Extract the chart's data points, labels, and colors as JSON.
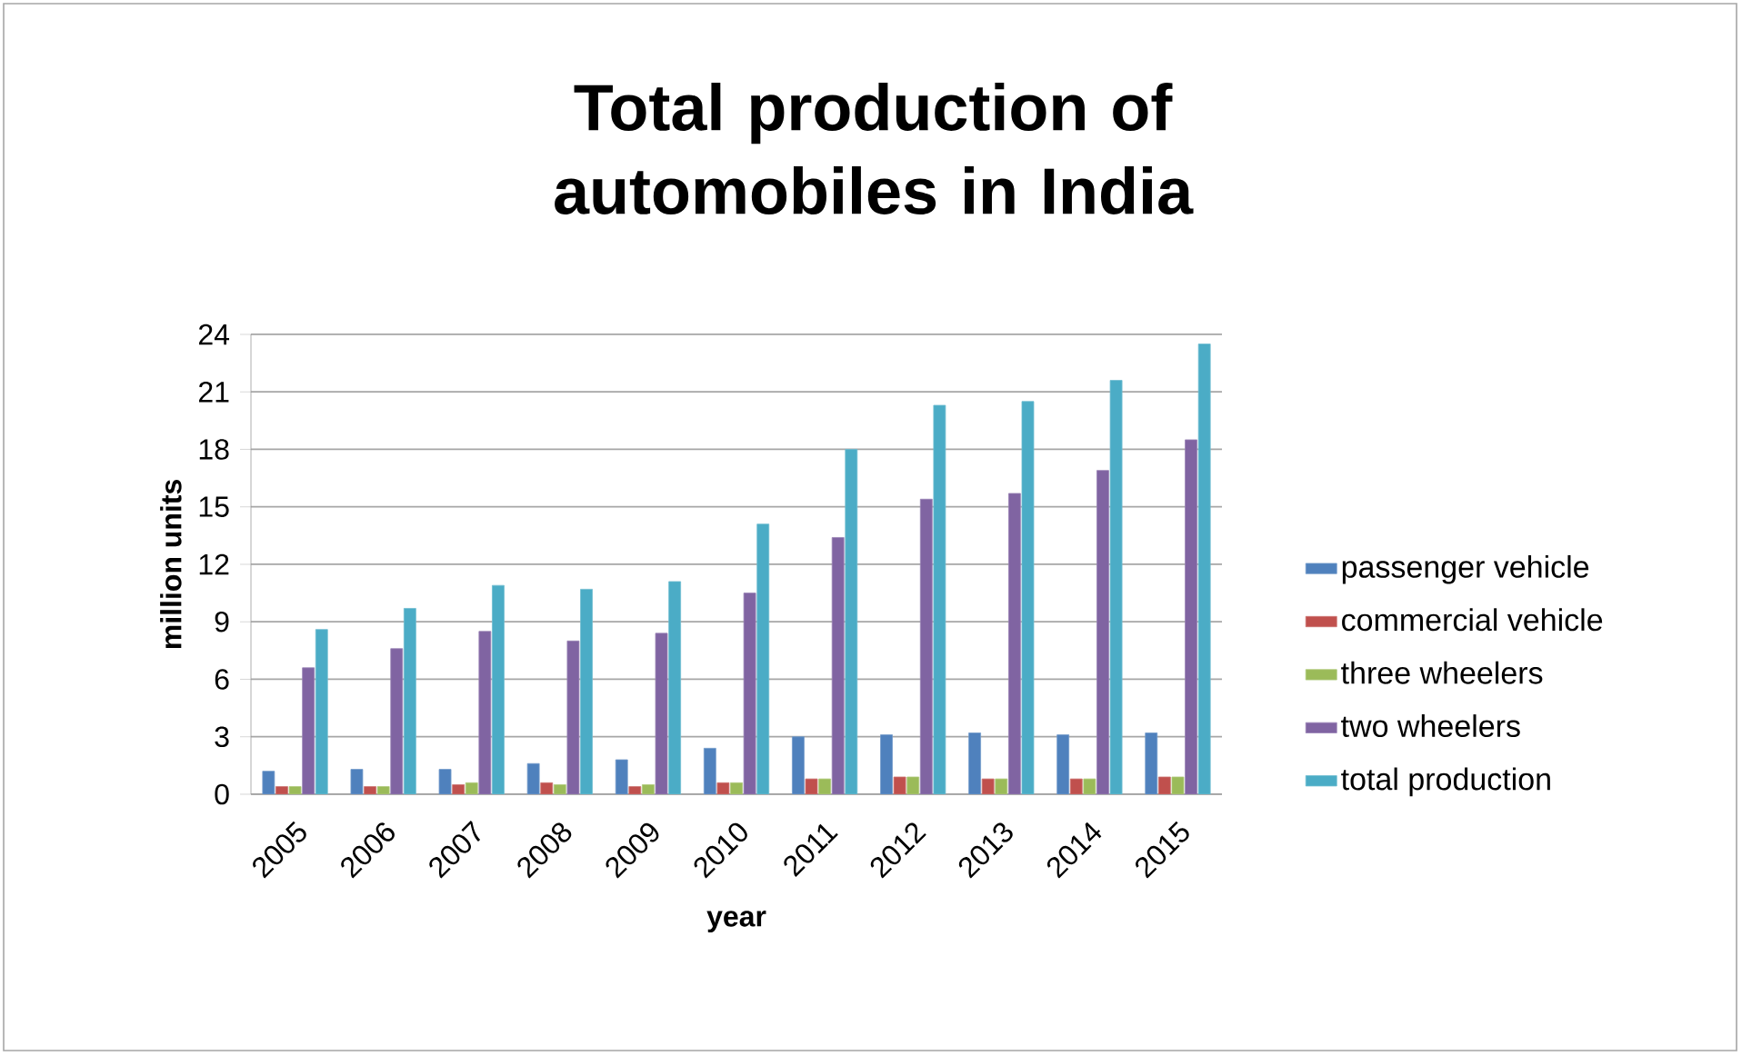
{
  "chart_data": {
    "type": "bar",
    "title": "Total production of automobiles in India",
    "xlabel": "year",
    "ylabel": "million units",
    "categories": [
      "2005",
      "2006",
      "2007",
      "2008",
      "2009",
      "2010",
      "2011",
      "2012",
      "2013",
      "2014",
      "2015"
    ],
    "series": [
      {
        "name": "passenger vehicle",
        "color": "#4f81bd",
        "values": [
          1.2,
          1.3,
          1.3,
          1.6,
          1.8,
          2.4,
          3.0,
          3.1,
          3.2,
          3.1,
          3.2
        ]
      },
      {
        "name": "commercial vehicle",
        "color": "#c0504d",
        "values": [
          0.4,
          0.4,
          0.5,
          0.6,
          0.4,
          0.6,
          0.8,
          0.9,
          0.8,
          0.8,
          0.9
        ]
      },
      {
        "name": "three wheelers",
        "color": "#9bbb59",
        "values": [
          0.4,
          0.4,
          0.6,
          0.5,
          0.5,
          0.6,
          0.8,
          0.9,
          0.8,
          0.8,
          0.9
        ]
      },
      {
        "name": "two wheelers",
        "color": "#8064a2",
        "values": [
          6.6,
          7.6,
          8.5,
          8.0,
          8.4,
          10.5,
          13.4,
          15.4,
          15.7,
          16.9,
          18.5
        ]
      },
      {
        "name": "total production",
        "color": "#4bacc6",
        "values": [
          8.6,
          9.7,
          10.9,
          10.7,
          11.1,
          14.1,
          18.0,
          20.3,
          20.5,
          21.6,
          23.5
        ]
      }
    ],
    "ylim": [
      0,
      24
    ],
    "yticks": [
      0,
      3,
      6,
      9,
      12,
      15,
      18,
      21,
      24
    ],
    "grid": "y",
    "legend": "right"
  }
}
